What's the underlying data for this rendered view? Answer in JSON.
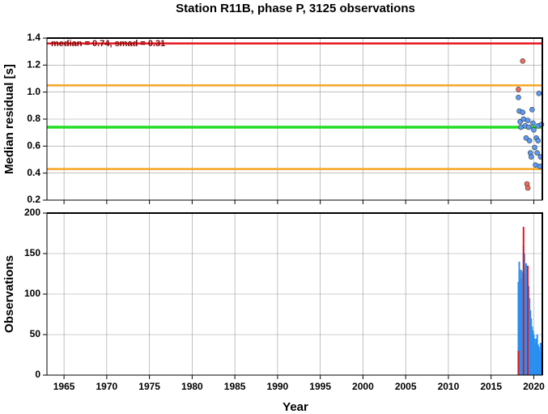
{
  "chart_data": [
    {
      "type": "scatter",
      "title": "Station R11B, phase P, 3125 observations",
      "ylabel": "Median residual [s]",
      "annotation": "median = 0.74, smad = 0.31",
      "xlim": [
        1963,
        2021
      ],
      "xticks": [
        1965,
        1970,
        1975,
        1980,
        1985,
        1990,
        1995,
        2000,
        2005,
        2010,
        2015,
        2020
      ],
      "ylim": [
        0.2,
        1.4
      ],
      "yticks": [
        0.2,
        0.4,
        0.6,
        0.8,
        {
          "value": 1,
          "label": "1.0"
        },
        1.2,
        1.4
      ],
      "grid": true,
      "hlines": [
        {
          "value": 1.36,
          "color": "#e8141e"
        },
        {
          "value": 1.05,
          "color": "#f5a623"
        },
        {
          "value": 0.74,
          "color": "#22dd22"
        },
        {
          "value": 0.43,
          "color": "#f5a623"
        }
      ],
      "series": [
        {
          "color": "#5b9bf5",
          "x": [
            2018.2,
            2018.3,
            2018.4,
            2018.5,
            2018.7,
            2018.8,
            2019.0,
            2019.1,
            2019.3,
            2019.4,
            2019.5,
            2019.6,
            2019.7,
            2019.8,
            2019.9,
            2020.0,
            2020.1,
            2020.2,
            2020.3,
            2020.4,
            2020.5,
            2020.5,
            2020.6,
            2020.7,
            2020.8,
            2020.9
          ],
          "values": [
            0.96,
            0.86,
            0.78,
            0.74,
            0.85,
            0.8,
            0.75,
            0.66,
            0.79,
            0.74,
            0.64,
            0.55,
            0.52,
            0.87,
            0.77,
            0.72,
            0.59,
            0.46,
            0.66,
            0.55,
            0.75,
            0.64,
            0.99,
            0.45,
            0.52,
            0.76
          ]
        },
        {
          "color": "#f26b5b",
          "x": [
            2018.2,
            2018.7,
            2019.2,
            2019.3
          ],
          "values": [
            1.02,
            1.23,
            0.32,
            0.29
          ]
        }
      ]
    },
    {
      "type": "bar",
      "ylabel": "Observations",
      "xlabel": "Year",
      "xlim": [
        1963,
        2021
      ],
      "xticks": [
        1965,
        1970,
        1975,
        1980,
        1985,
        1990,
        1995,
        2000,
        2005,
        2010,
        2015,
        2020
      ],
      "ylim": [
        0,
        200
      ],
      "yticks": [
        0,
        50,
        100,
        150,
        200
      ],
      "grid": true,
      "series": [
        {
          "color": "#2b8ff0",
          "x": [
            2018.2,
            2018.3,
            2018.4,
            2018.5,
            2018.6,
            2018.7,
            2018.8,
            2018.9,
            2019.0,
            2019.1,
            2019.2,
            2019.3,
            2019.4,
            2019.5,
            2019.6,
            2019.7,
            2019.8,
            2019.9,
            2020.0,
            2020.1,
            2020.2,
            2020.3,
            2020.4,
            2020.5,
            2020.6,
            2020.7,
            2020.8,
            2020.9,
            2021.0
          ],
          "values": [
            115,
            140,
            118,
            130,
            120,
            128,
            160,
            150,
            125,
            138,
            135,
            115,
            110,
            95,
            80,
            70,
            60,
            55,
            50,
            45,
            40,
            45,
            50,
            38,
            35,
            30,
            40,
            28,
            25
          ]
        },
        {
          "color": "#e8141e",
          "x": [
            2018.2,
            2018.8,
            2019.3
          ],
          "values": [
            30,
            183,
            135
          ]
        }
      ]
    }
  ]
}
